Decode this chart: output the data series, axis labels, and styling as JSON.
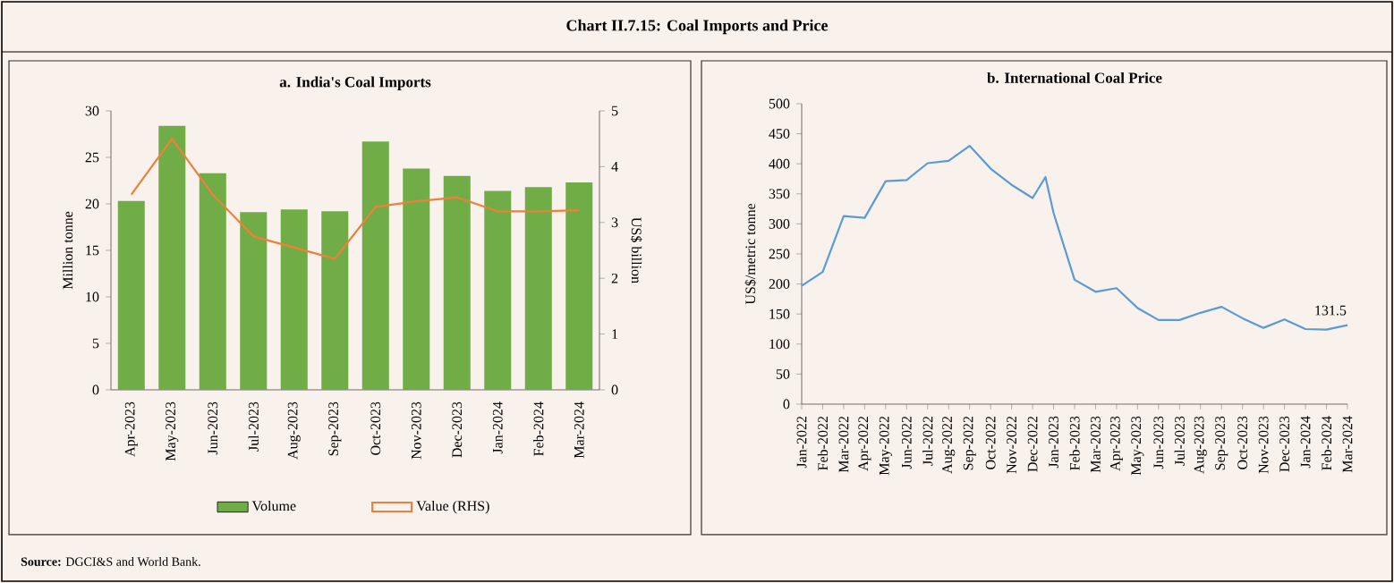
{
  "chart_data": [
    {
      "type": "bar",
      "title": "a. India's Coal Imports",
      "categories": [
        "Apr-2023",
        "May-2023",
        "Jun-2023",
        "Jul-2023",
        "Aug-2023",
        "Sep-2023",
        "Oct-2023",
        "Nov-2023",
        "Dec-2023",
        "Jan-2024",
        "Feb-2024",
        "Mar-2024"
      ],
      "series": [
        {
          "name": "Volume",
          "type": "bar",
          "color": "#70ad47",
          "values": [
            20.3,
            28.4,
            23.3,
            19.1,
            19.4,
            19.2,
            26.7,
            23.8,
            23.0,
            21.4,
            21.8,
            22.3
          ]
        },
        {
          "name": "Value (RHS)",
          "type": "line",
          "axis": "y2",
          "color": "#f07f3c",
          "values": [
            3.5,
            4.5,
            3.5,
            2.75,
            2.55,
            2.35,
            3.28,
            3.38,
            3.45,
            3.2,
            3.2,
            3.22
          ]
        }
      ],
      "ylim": [
        0,
        30
      ],
      "yticks": [
        0,
        5,
        10,
        15,
        20,
        25,
        30
      ],
      "y2lim": [
        0,
        5
      ],
      "y2ticks": [
        0,
        1,
        2,
        3,
        4,
        5
      ],
      "ylabel": "Million tonne",
      "y2label": "US$ billion",
      "legend": "bottom",
      "annotations": [
        "Chart II.7.15: Coal Imports and Price",
        "**Source:** DGCI&S and World Bank."
      ]
    },
    {
      "type": "line",
      "title": "b. International Coal Price",
      "x": [
        "2022-01",
        "2022-02",
        "2022-03",
        "2022-04",
        "2022-05",
        "2022-06",
        "2022-07",
        "2022-08",
        "2022-09",
        "2022-10",
        "2022-11",
        "2022-12",
        "2022-12-20",
        "2023-01",
        "2023-02",
        "2023-03",
        "2023-04",
        "2023-05",
        "2023-06",
        "2023-07",
        "2023-08",
        "2023-09",
        "2023-10",
        "2023-11",
        "2023-12",
        "2024-01",
        "2024-02",
        "2024-03"
      ],
      "series": [
        {
          "color": "#5b9bd5",
          "values": [
            197,
            220,
            313,
            310,
            371,
            373,
            401,
            405,
            430,
            392,
            365,
            343,
            378,
            318,
            207,
            187,
            193,
            160,
            140,
            140,
            152,
            162,
            143,
            127,
            141,
            125,
            124,
            131.5
          ]
        }
      ],
      "xlim": [
        "2022-01",
        "2024-03"
      ],
      "xticks": [
        {
          "value": "2022-01",
          "label": "Jan-2022"
        },
        {
          "value": "2022-02",
          "label": "Feb-2022"
        },
        {
          "value": "2022-03",
          "label": "Mar-2022"
        },
        {
          "value": "2022-04",
          "label": "Apr-2022"
        },
        {
          "value": "2022-05",
          "label": "May-2022"
        },
        {
          "value": "2022-06",
          "label": "Jun-2022"
        },
        {
          "value": "2022-07",
          "label": "Jul-2022"
        },
        {
          "value": "2022-08",
          "label": "Aug-2022"
        },
        {
          "value": "2022-09",
          "label": "Sep-2022"
        },
        {
          "value": "2022-10",
          "label": "Oct-2022"
        },
        {
          "value": "2022-11",
          "label": "Nov-2022"
        },
        {
          "value": "2022-12",
          "label": "Dec-2022"
        },
        {
          "value": "2023-01",
          "label": "Jan-2023"
        },
        {
          "value": "2023-02",
          "label": "Feb-2023"
        },
        {
          "value": "2023-03",
          "label": "Mar-2023"
        },
        {
          "value": "2023-04",
          "label": "Apr-2023"
        },
        {
          "value": "2023-05",
          "label": "May-2023"
        },
        {
          "value": "2023-06",
          "label": "Jun-2023"
        },
        {
          "value": "2023-07",
          "label": "Jul-2023"
        },
        {
          "value": "2023-08",
          "label": "Aug-2023"
        },
        {
          "value": "2023-09",
          "label": "Sep-2023"
        },
        {
          "value": "2023-10",
          "label": "Oct-2023"
        },
        {
          "value": "2023-11",
          "label": "Nov-2023"
        },
        {
          "value": "2023-12",
          "label": "Dec-2023"
        },
        {
          "value": "2024-01",
          "label": "Jan-2024"
        },
        {
          "value": "2024-02",
          "label": "Feb-2024"
        },
        {
          "value": "2024-03",
          "label": "Mar-2024"
        }
      ],
      "ylim": [
        0,
        500
      ],
      "yticks": [
        0,
        50,
        100,
        150,
        200,
        250,
        300,
        350,
        400,
        450,
        500
      ],
      "ylabel": "US$/metric tonne",
      "annotations": [
        {
          "text": "131.5",
          "x": "2024-03",
          "y": 131.5
        }
      ]
    }
  ]
}
